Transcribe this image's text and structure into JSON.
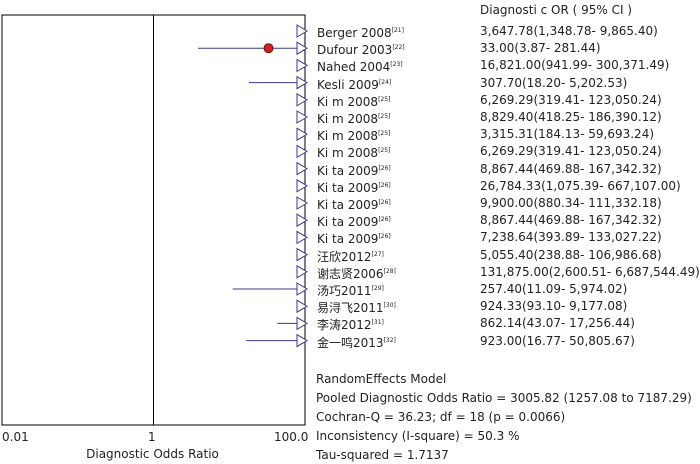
{
  "chart_data": {
    "type": "forest",
    "header": "Diagnosti c OR ( 95% CI )",
    "xlabel": "Diagnostic Odds Ratio",
    "x_scale": "log",
    "xlim": [
      0.01,
      100.0
    ],
    "x_ticks": [
      "0.01",
      "1",
      "100.0"
    ],
    "reference_line": 1,
    "studies": [
      {
        "label": "Berger 2008",
        "ref": "[21]",
        "or_text": "3,647.78(1,348.78- 9,865.40)",
        "or": 3647.78,
        "lo": 1348.78,
        "hi": 9865.4
      },
      {
        "label": "Dufour 2003",
        "ref": "[22]",
        "or_text": "33.00(3.87- 281.44)",
        "or": 33.0,
        "lo": 3.87,
        "hi": 281.44
      },
      {
        "label": "Nahed 2004",
        "ref": "[23]",
        "or_text": "16,821.00(941.99- 300,371.49)",
        "or": 16821.0,
        "lo": 941.99,
        "hi": 300371.49
      },
      {
        "label": "Kesli 2009",
        "ref": "[24]",
        "or_text": "307.70(18.20- 5,202.53)",
        "or": 307.7,
        "lo": 18.2,
        "hi": 5202.53
      },
      {
        "label": "Ki m 2008",
        "ref": "[25]",
        "or_text": "6,269.29(319.41- 123,050.24)",
        "or": 6269.29,
        "lo": 319.41,
        "hi": 123050.24
      },
      {
        "label": "Ki m 2008",
        "ref": "[25]",
        "or_text": "8,829.40(418.25- 186,390.12)",
        "or": 8829.4,
        "lo": 418.25,
        "hi": 186390.12
      },
      {
        "label": "Ki m 2008",
        "ref": "[25]",
        "or_text": "3,315.31(184.13- 59,693.24)",
        "or": 3315.31,
        "lo": 184.13,
        "hi": 59693.24
      },
      {
        "label": "Ki m 2008",
        "ref": "[25]",
        "or_text": "6,269.29(319.41- 123,050.24)",
        "or": 6269.29,
        "lo": 319.41,
        "hi": 123050.24
      },
      {
        "label": "Ki ta 2009",
        "ref": "[26]",
        "or_text": "8,867.44(469.88- 167,342.32)",
        "or": 8867.44,
        "lo": 469.88,
        "hi": 167342.32
      },
      {
        "label": "Ki ta 2009",
        "ref": "[26]",
        "or_text": "26,784.33(1,075.39- 667,107.00)",
        "or": 26784.33,
        "lo": 1075.39,
        "hi": 667107.0
      },
      {
        "label": "Ki ta 2009",
        "ref": "[26]",
        "or_text": "9,900.00(880.34- 111,332.18)",
        "or": 9900.0,
        "lo": 880.34,
        "hi": 111332.18
      },
      {
        "label": "Ki ta 2009",
        "ref": "[26]",
        "or_text": "8,867.44(469.88- 167,342.32)",
        "or": 8867.44,
        "lo": 469.88,
        "hi": 167342.32
      },
      {
        "label": "Ki ta 2009",
        "ref": "[26]",
        "or_text": "7,238.64(393.89- 133,027.22)",
        "or": 7238.64,
        "lo": 393.89,
        "hi": 133027.22
      },
      {
        "label": "汪欣2012",
        "ref": "[27]",
        "or_text": "5,055.40(238.88- 106,986.68)",
        "or": 5055.4,
        "lo": 238.88,
        "hi": 106986.68
      },
      {
        "label": "谢志贤2006",
        "ref": "[28]",
        "or_text": "131,875.00(2,600.51- 6,687,544.49)",
        "or": 131875.0,
        "lo": 2600.51,
        "hi": 6687544.49
      },
      {
        "label": "汤巧2011",
        "ref": "[29]",
        "or_text": "257.40(11.09- 5,974.02)",
        "or": 257.4,
        "lo": 11.09,
        "hi": 5974.02
      },
      {
        "label": "易浔飞2011",
        "ref": "[30]",
        "or_text": "924.33(93.10- 9,177.08)",
        "or": 924.33,
        "lo": 93.1,
        "hi": 9177.08
      },
      {
        "label": "李涛2012",
        "ref": "[31]",
        "or_text": "862.14(43.07- 17,256.44)",
        "or": 862.14,
        "lo": 43.07,
        "hi": 17256.44
      },
      {
        "label": "金一鸣2013",
        "ref": "[32]",
        "or_text": "923.00(16.77- 50,805.67)",
        "or": 923.0,
        "lo": 16.77,
        "hi": 50805.67
      }
    ],
    "summary_lines": [
      "RandomEffects Model",
      "Pooled Diagnostic Odds Ratio = 3005.82 (1257.08 to 7187.29)",
      "Cochran-Q = 36.23; df = 18 (p = 0.0066)",
      "Inconsistency (I-square) = 50.3 %",
      "Tau-squared = 1.7137"
    ],
    "colors": {
      "line": "#3a3a8c",
      "point": "#d42020",
      "frame": "#000000"
    }
  }
}
